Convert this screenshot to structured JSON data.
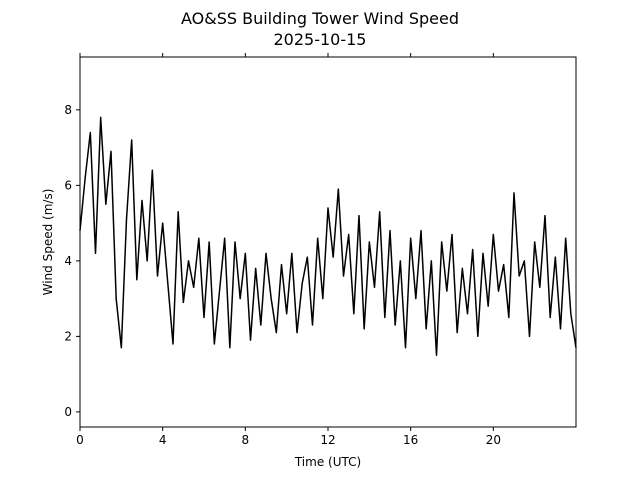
{
  "chart_data": {
    "type": "line",
    "title": "AO&SS Building Tower Wind Speed",
    "subtitle": "2025-10-15",
    "x_label": "Time (UTC)",
    "y_label": "Wind Speed (m/s)",
    "x": [
      0,
      0.25,
      0.5,
      0.75,
      1,
      1.25,
      1.5,
      1.75,
      2,
      2.25,
      2.5,
      2.75,
      3,
      3.25,
      3.5,
      3.75,
      4,
      4.25,
      4.5,
      4.75,
      5,
      5.25,
      5.5,
      5.75,
      6,
      6.25,
      6.5,
      6.75,
      7,
      7.25,
      7.5,
      7.75,
      8,
      8.25,
      8.5,
      8.75,
      9,
      9.25,
      9.5,
      9.75,
      10,
      10.25,
      10.5,
      10.75,
      11,
      11.25,
      11.5,
      11.75,
      12,
      12.25,
      12.5,
      12.75,
      13,
      13.25,
      13.5,
      13.75,
      14,
      14.25,
      14.5,
      14.75,
      15,
      15.25,
      15.5,
      15.75,
      16,
      16.25,
      16.5,
      16.75,
      17,
      17.25,
      17.5,
      17.75,
      18,
      18.25,
      18.5,
      18.75,
      19,
      19.25,
      19.5,
      19.75,
      20,
      20.25,
      20.5,
      20.75,
      21,
      21.25,
      21.5,
      21.75,
      22,
      22.25,
      22.5,
      22.75,
      23,
      23.25,
      23.5,
      23.75,
      24
    ],
    "series": [
      {
        "name": "Wind Speed",
        "color": "#000000",
        "values": [
          4.8,
          6.2,
          7.4,
          4.2,
          7.8,
          5.5,
          6.9,
          3.0,
          1.7,
          5.1,
          7.2,
          3.5,
          5.6,
          4.0,
          6.4,
          3.6,
          5.0,
          3.4,
          1.8,
          5.3,
          2.9,
          4.0,
          3.3,
          4.6,
          2.5,
          4.5,
          1.8,
          3.2,
          4.6,
          1.7,
          4.5,
          3.0,
          4.2,
          1.9,
          3.8,
          2.3,
          4.2,
          3.0,
          2.1,
          3.9,
          2.6,
          4.2,
          2.1,
          3.4,
          4.1,
          2.3,
          4.6,
          3.0,
          5.4,
          4.1,
          5.9,
          3.6,
          4.7,
          2.6,
          5.2,
          2.2,
          4.5,
          3.3,
          5.3,
          2.5,
          4.8,
          2.3,
          4.0,
          1.7,
          4.6,
          3.0,
          4.8,
          2.2,
          4.0,
          1.5,
          4.5,
          3.2,
          4.7,
          2.1,
          3.8,
          2.6,
          4.3,
          2.0,
          4.2,
          2.8,
          4.7,
          3.2,
          3.9,
          2.5,
          5.8,
          3.6,
          4.0,
          2.0,
          4.5,
          3.3,
          5.2,
          2.5,
          4.1,
          2.2,
          4.6,
          2.6,
          1.7
        ]
      }
    ],
    "xlim": [
      0,
      24
    ],
    "ylim": [
      -0.4,
      9.4
    ],
    "xticks": [
      0,
      4,
      8,
      12,
      16,
      20
    ],
    "yticks": [
      0,
      2,
      4,
      6,
      8
    ]
  }
}
